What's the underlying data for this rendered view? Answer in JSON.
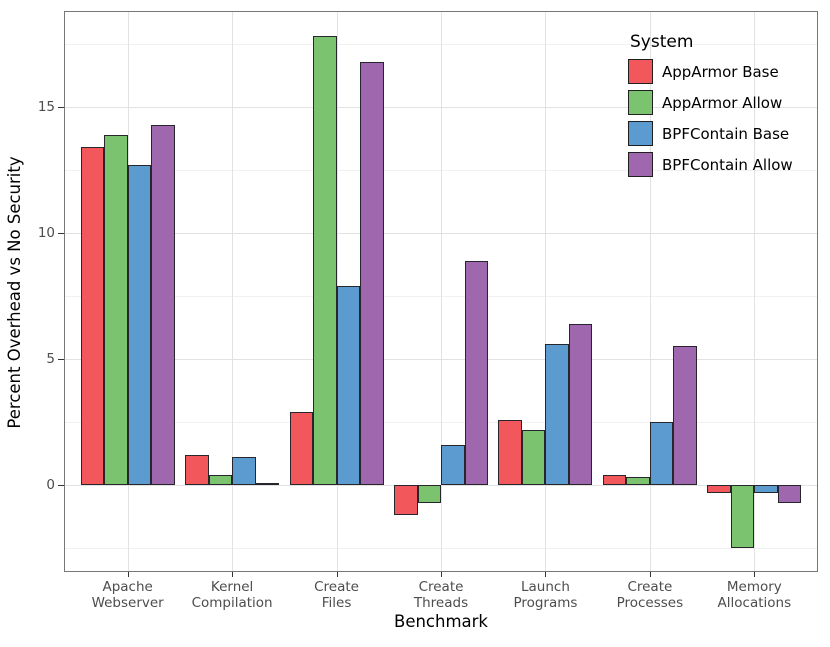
{
  "chart_data": {
    "type": "bar",
    "title": "",
    "xlabel": "Benchmark",
    "ylabel": "Percent Overhead vs No Security",
    "legend_title": "System",
    "legend_position": "top-right-inside",
    "grid": true,
    "categories": [
      "Apache Webserver",
      "Kernel Compilation",
      "Create Files",
      "Create Threads",
      "Launch Programs",
      "Create Processes",
      "Memory Allocations"
    ],
    "category_label_lines": [
      [
        "Apache",
        "Webserver"
      ],
      [
        "Kernel",
        "Compilation"
      ],
      [
        "Create",
        "Files"
      ],
      [
        "Create",
        "Threads"
      ],
      [
        "Launch",
        "Programs"
      ],
      [
        "Create",
        "Processes"
      ],
      [
        "Memory",
        "Allocations"
      ]
    ],
    "series": [
      {
        "name": "AppArmor Base",
        "color": "#F2575C",
        "values": [
          13.4,
          1.2,
          2.9,
          -1.2,
          2.6,
          0.4,
          -0.3
        ]
      },
      {
        "name": "AppArmor Allow",
        "color": "#7BC36E",
        "values": [
          13.9,
          0.4,
          17.8,
          -0.7,
          2.2,
          0.3,
          -2.5
        ]
      },
      {
        "name": "BPFContain Base",
        "color": "#5B9BD0",
        "values": [
          12.7,
          1.1,
          7.9,
          1.6,
          5.6,
          2.5,
          -0.3
        ]
      },
      {
        "name": "BPFContain Allow",
        "color": "#9F67AD",
        "values": [
          14.3,
          0.1,
          16.8,
          8.9,
          6.4,
          5.5,
          -0.7
        ]
      }
    ],
    "ylim": [
      -3.5,
      18.8
    ],
    "yticks": [
      0,
      5,
      10,
      15
    ],
    "yticks_minor": [
      -2.5,
      2.5,
      7.5,
      12.5,
      17.5
    ],
    "bar_edge_color": "#26262c",
    "panel_border_color": "#777777"
  }
}
